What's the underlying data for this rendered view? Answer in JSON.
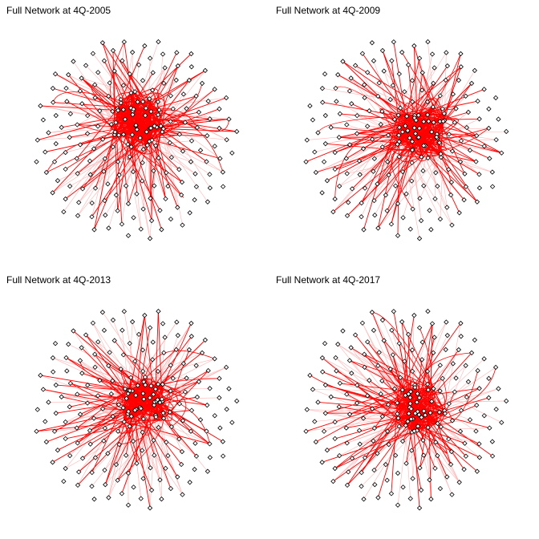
{
  "panels": [
    {
      "title": "Full Network at 4Q-2005",
      "seed": 11,
      "hub_dx": 0.0,
      "hub_dy": -0.35
    },
    {
      "title": "Full Network at 4Q-2009",
      "seed": 23,
      "hub_dx": 0.35,
      "hub_dy": -0.15
    },
    {
      "title": "Full Network at 4Q-2013",
      "seed": 37,
      "hub_dx": 0.15,
      "hub_dy": -0.1
    },
    {
      "title": "Full Network at 4Q-2017",
      "seed": 53,
      "hub_dx": 0.25,
      "hub_dy": -0.05
    }
  ],
  "colors": {
    "edge_strong": "#ff0000",
    "edge_faint": "#ffb3b3",
    "node_fill": "#ffffff",
    "node_stroke": "#000000"
  },
  "node_shape": "diamond"
}
